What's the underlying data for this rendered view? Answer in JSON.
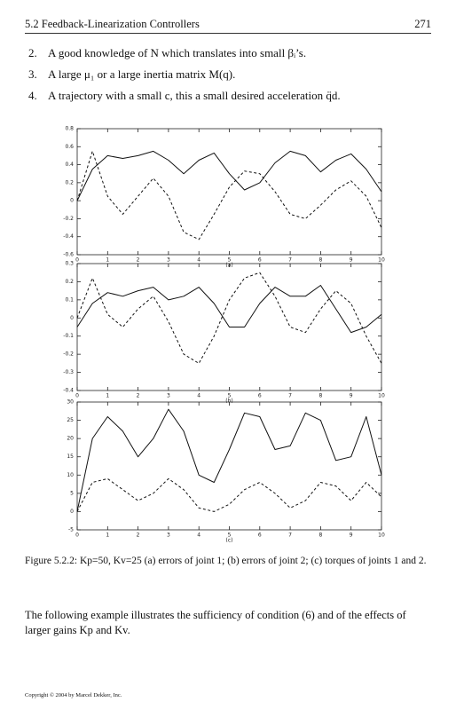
{
  "header": {
    "section": "5.2 Feedback-Linearization Controllers",
    "page": "271"
  },
  "list": [
    {
      "number": "2.",
      "text": "A good knowledge of N which translates into small βᵢ’s."
    },
    {
      "number": "3.",
      "text": "A large μ₁ or a large inertia matrix M(q)."
    },
    {
      "number": "4.",
      "text": "A trajectory with a small c, this a small desired acceleration q̈d."
    }
  ],
  "chart_data": [
    {
      "type": "line",
      "xlabel": "(a)",
      "x": [
        0,
        0.5,
        1,
        1.5,
        2,
        2.5,
        3,
        3.5,
        4,
        4.5,
        5,
        5.5,
        6,
        6.5,
        7,
        7.5,
        8,
        8.5,
        9,
        9.5,
        10
      ],
      "xlim": [
        0,
        10
      ],
      "xticks": [
        0,
        1,
        2,
        3,
        4,
        5,
        6,
        7,
        8,
        9,
        10
      ],
      "ylim": [
        -0.6,
        0.8
      ],
      "yticks": [
        -0.6,
        -0.4,
        -0.2,
        0,
        0.2,
        0.4,
        0.6,
        0.8
      ],
      "series": [
        {
          "color": "#111111",
          "line_style": "solid",
          "values": [
            0,
            0.35,
            0.5,
            0.47,
            0.5,
            0.55,
            0.45,
            0.3,
            0.45,
            0.53,
            0.3,
            0.12,
            0.2,
            0.42,
            0.55,
            0.5,
            0.32,
            0.45,
            0.52,
            0.35,
            0.1
          ]
        },
        {
          "color": "#111111",
          "line_style": "dashed",
          "values": [
            0,
            0.55,
            0.05,
            -0.15,
            0.05,
            0.25,
            0.05,
            -0.35,
            -0.43,
            -0.15,
            0.15,
            0.33,
            0.3,
            0.1,
            -0.15,
            -0.2,
            -0.05,
            0.12,
            0.22,
            0.05,
            -0.3
          ]
        }
      ]
    },
    {
      "type": "line",
      "xlabel": "(b)",
      "x": [
        0,
        0.5,
        1,
        1.5,
        2,
        2.5,
        3,
        3.5,
        4,
        4.5,
        5,
        5.5,
        6,
        6.5,
        7,
        7.5,
        8,
        8.5,
        9,
        9.5,
        10
      ],
      "xlim": [
        0,
        10
      ],
      "xticks": [
        0,
        1,
        2,
        3,
        4,
        5,
        6,
        7,
        8,
        9,
        10
      ],
      "ylim": [
        -0.4,
        0.3
      ],
      "yticks": [
        -0.4,
        -0.3,
        -0.2,
        -0.1,
        0,
        0.1,
        0.2,
        0.3
      ],
      "series": [
        {
          "color": "#111111",
          "line_style": "solid",
          "values": [
            -0.05,
            0.08,
            0.14,
            0.12,
            0.15,
            0.17,
            0.1,
            0.12,
            0.17,
            0.08,
            -0.05,
            -0.05,
            0.08,
            0.17,
            0.12,
            0.12,
            0.18,
            0.05,
            -0.08,
            -0.05,
            0.02
          ]
        },
        {
          "color": "#111111",
          "line_style": "dashed",
          "values": [
            0,
            0.22,
            0.02,
            -0.05,
            0.05,
            0.12,
            -0.02,
            -0.2,
            -0.25,
            -0.1,
            0.1,
            0.22,
            0.25,
            0.12,
            -0.05,
            -0.08,
            0.05,
            0.15,
            0.08,
            -0.1,
            -0.25
          ]
        }
      ]
    },
    {
      "type": "line",
      "xlabel": "(c)",
      "x": [
        0,
        0.5,
        1,
        1.5,
        2,
        2.5,
        3,
        3.5,
        4,
        4.5,
        5,
        5.5,
        6,
        6.5,
        7,
        7.5,
        8,
        8.5,
        9,
        9.5,
        10
      ],
      "xlim": [
        0,
        10
      ],
      "xticks": [
        0,
        1,
        2,
        3,
        4,
        5,
        6,
        7,
        8,
        9,
        10
      ],
      "ylim": [
        -5,
        30
      ],
      "yticks": [
        -5,
        0,
        5,
        10,
        15,
        20,
        25,
        30
      ],
      "series": [
        {
          "color": "#111111",
          "line_style": "solid",
          "values": [
            0,
            20,
            26,
            22,
            15,
            20,
            28,
            22,
            10,
            8,
            17,
            27,
            26,
            17,
            18,
            27,
            25,
            14,
            15,
            26,
            10
          ]
        },
        {
          "color": "#111111",
          "line_style": "dashed",
          "values": [
            0,
            8,
            9,
            6,
            3,
            5,
            9,
            6,
            1,
            0,
            2,
            6,
            8,
            5,
            1,
            3,
            8,
            7,
            3,
            8,
            4
          ]
        }
      ]
    }
  ],
  "caption": "Figure 5.2.2: Kp=50, Kv=25 (a) errors of joint 1; (b) errors of joint 2; (c) torques of joints 1 and 2.",
  "paragraph": "The following example illustrates the sufficiency of condition (6) and of the effects of larger gains Kp and Kv.",
  "footer": "Copyright © 2004 by Marcel Dekker, Inc."
}
